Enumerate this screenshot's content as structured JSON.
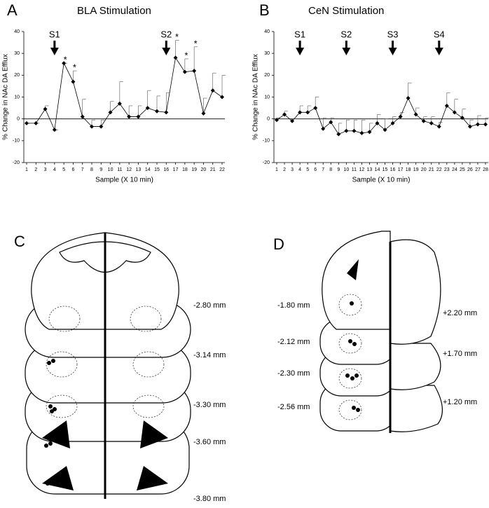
{
  "chart_data": [
    {
      "type": "line",
      "panel": "A",
      "title": "BLA Stimulation",
      "x_label": "Sample (X 10 min)",
      "y_label": "% Change in NAc DA Efflux",
      "x": [
        1,
        2,
        3,
        4,
        5,
        6,
        7,
        8,
        9,
        10,
        11,
        12,
        13,
        14,
        15,
        16,
        17,
        18,
        19,
        20,
        21,
        22
      ],
      "values": [
        -2,
        -2,
        4.5,
        -5,
        25.5,
        17,
        1,
        -3.5,
        -3.5,
        3,
        7,
        1,
        1,
        5,
        3.5,
        3,
        28,
        21.5,
        22,
        2.5,
        13,
        10
      ],
      "errors": [
        0,
        0,
        1.5,
        0,
        0,
        5,
        8,
        3,
        3,
        5,
        10,
        5,
        5,
        8,
        7,
        9,
        8,
        6,
        11,
        7,
        8,
        10
      ],
      "color": "#000000",
      "xlim": [
        1,
        22
      ],
      "xticks": [
        1,
        2,
        3,
        4,
        5,
        6,
        7,
        8,
        9,
        10,
        11,
        12,
        13,
        14,
        15,
        16,
        17,
        18,
        19,
        20,
        21,
        22
      ],
      "ylim": [
        -20,
        40
      ],
      "yticks": [
        -20,
        -10,
        0,
        10,
        20,
        30,
        40
      ],
      "arrows": [
        {
          "x": 4,
          "text": "S1"
        },
        {
          "x": 16,
          "text": "S2"
        }
      ],
      "annotations": [
        {
          "x": 5,
          "text": "*"
        },
        {
          "x": 6,
          "text": "*"
        },
        {
          "x": 17,
          "text": "*"
        },
        {
          "x": 18,
          "text": "*"
        },
        {
          "x": 19,
          "text": "*"
        }
      ]
    },
    {
      "type": "line",
      "panel": "B",
      "title": "CeN Stimulation",
      "x_label": "Sample (X 10 min)",
      "y_label": "% Change in NAc DA Efflux",
      "x": [
        1,
        2,
        3,
        4,
        5,
        6,
        7,
        8,
        9,
        10,
        11,
        12,
        13,
        14,
        15,
        16,
        17,
        18,
        19,
        20,
        21,
        22,
        23,
        24,
        25,
        26,
        27,
        28
      ],
      "values": [
        -0.5,
        2,
        -1,
        3,
        3,
        5,
        -4.5,
        -1.5,
        -7,
        -5.5,
        -5.5,
        -6.5,
        -6,
        -2,
        -5,
        -2,
        1,
        9.5,
        2,
        -1,
        -2,
        -3.5,
        6,
        3,
        0.5,
        -3.5,
        -2.5,
        -2.5
      ],
      "errors": [
        1,
        1.5,
        1,
        3,
        3,
        5,
        5,
        2,
        5,
        5,
        5,
        6,
        4,
        4,
        5,
        3,
        2,
        7,
        3,
        2,
        3,
        2,
        6,
        6,
        4,
        3,
        4,
        3
      ],
      "color": "#000000",
      "xlim": [
        1,
        28
      ],
      "xticks": [
        1,
        2,
        3,
        4,
        5,
        6,
        7,
        8,
        9,
        10,
        11,
        12,
        13,
        14,
        15,
        16,
        17,
        18,
        19,
        20,
        21,
        22,
        23,
        24,
        25,
        26,
        27,
        28
      ],
      "ylim": [
        -20,
        40
      ],
      "yticks": [
        -20,
        -10,
        0,
        10,
        20,
        30,
        40
      ],
      "arrows": [
        {
          "x": 4,
          "text": "S1"
        },
        {
          "x": 10,
          "text": "S2"
        },
        {
          "x": 16,
          "text": "S3"
        },
        {
          "x": 22,
          "text": "S4"
        }
      ],
      "annotations": []
    }
  ],
  "section_c": {
    "panel": "C",
    "levels": [
      "-2.80 mm",
      "-3.14 mm",
      "-3.30 mm",
      "-3.60 mm",
      "-3.80 mm"
    ]
  },
  "section_d": {
    "panel": "D",
    "left_levels": [
      "-1.80 mm",
      "-2.12 mm",
      "-2.30 mm",
      "-2.56 mm"
    ],
    "right_levels": [
      "+2.20 mm",
      "+1.70 mm",
      "+1.20 mm"
    ]
  }
}
